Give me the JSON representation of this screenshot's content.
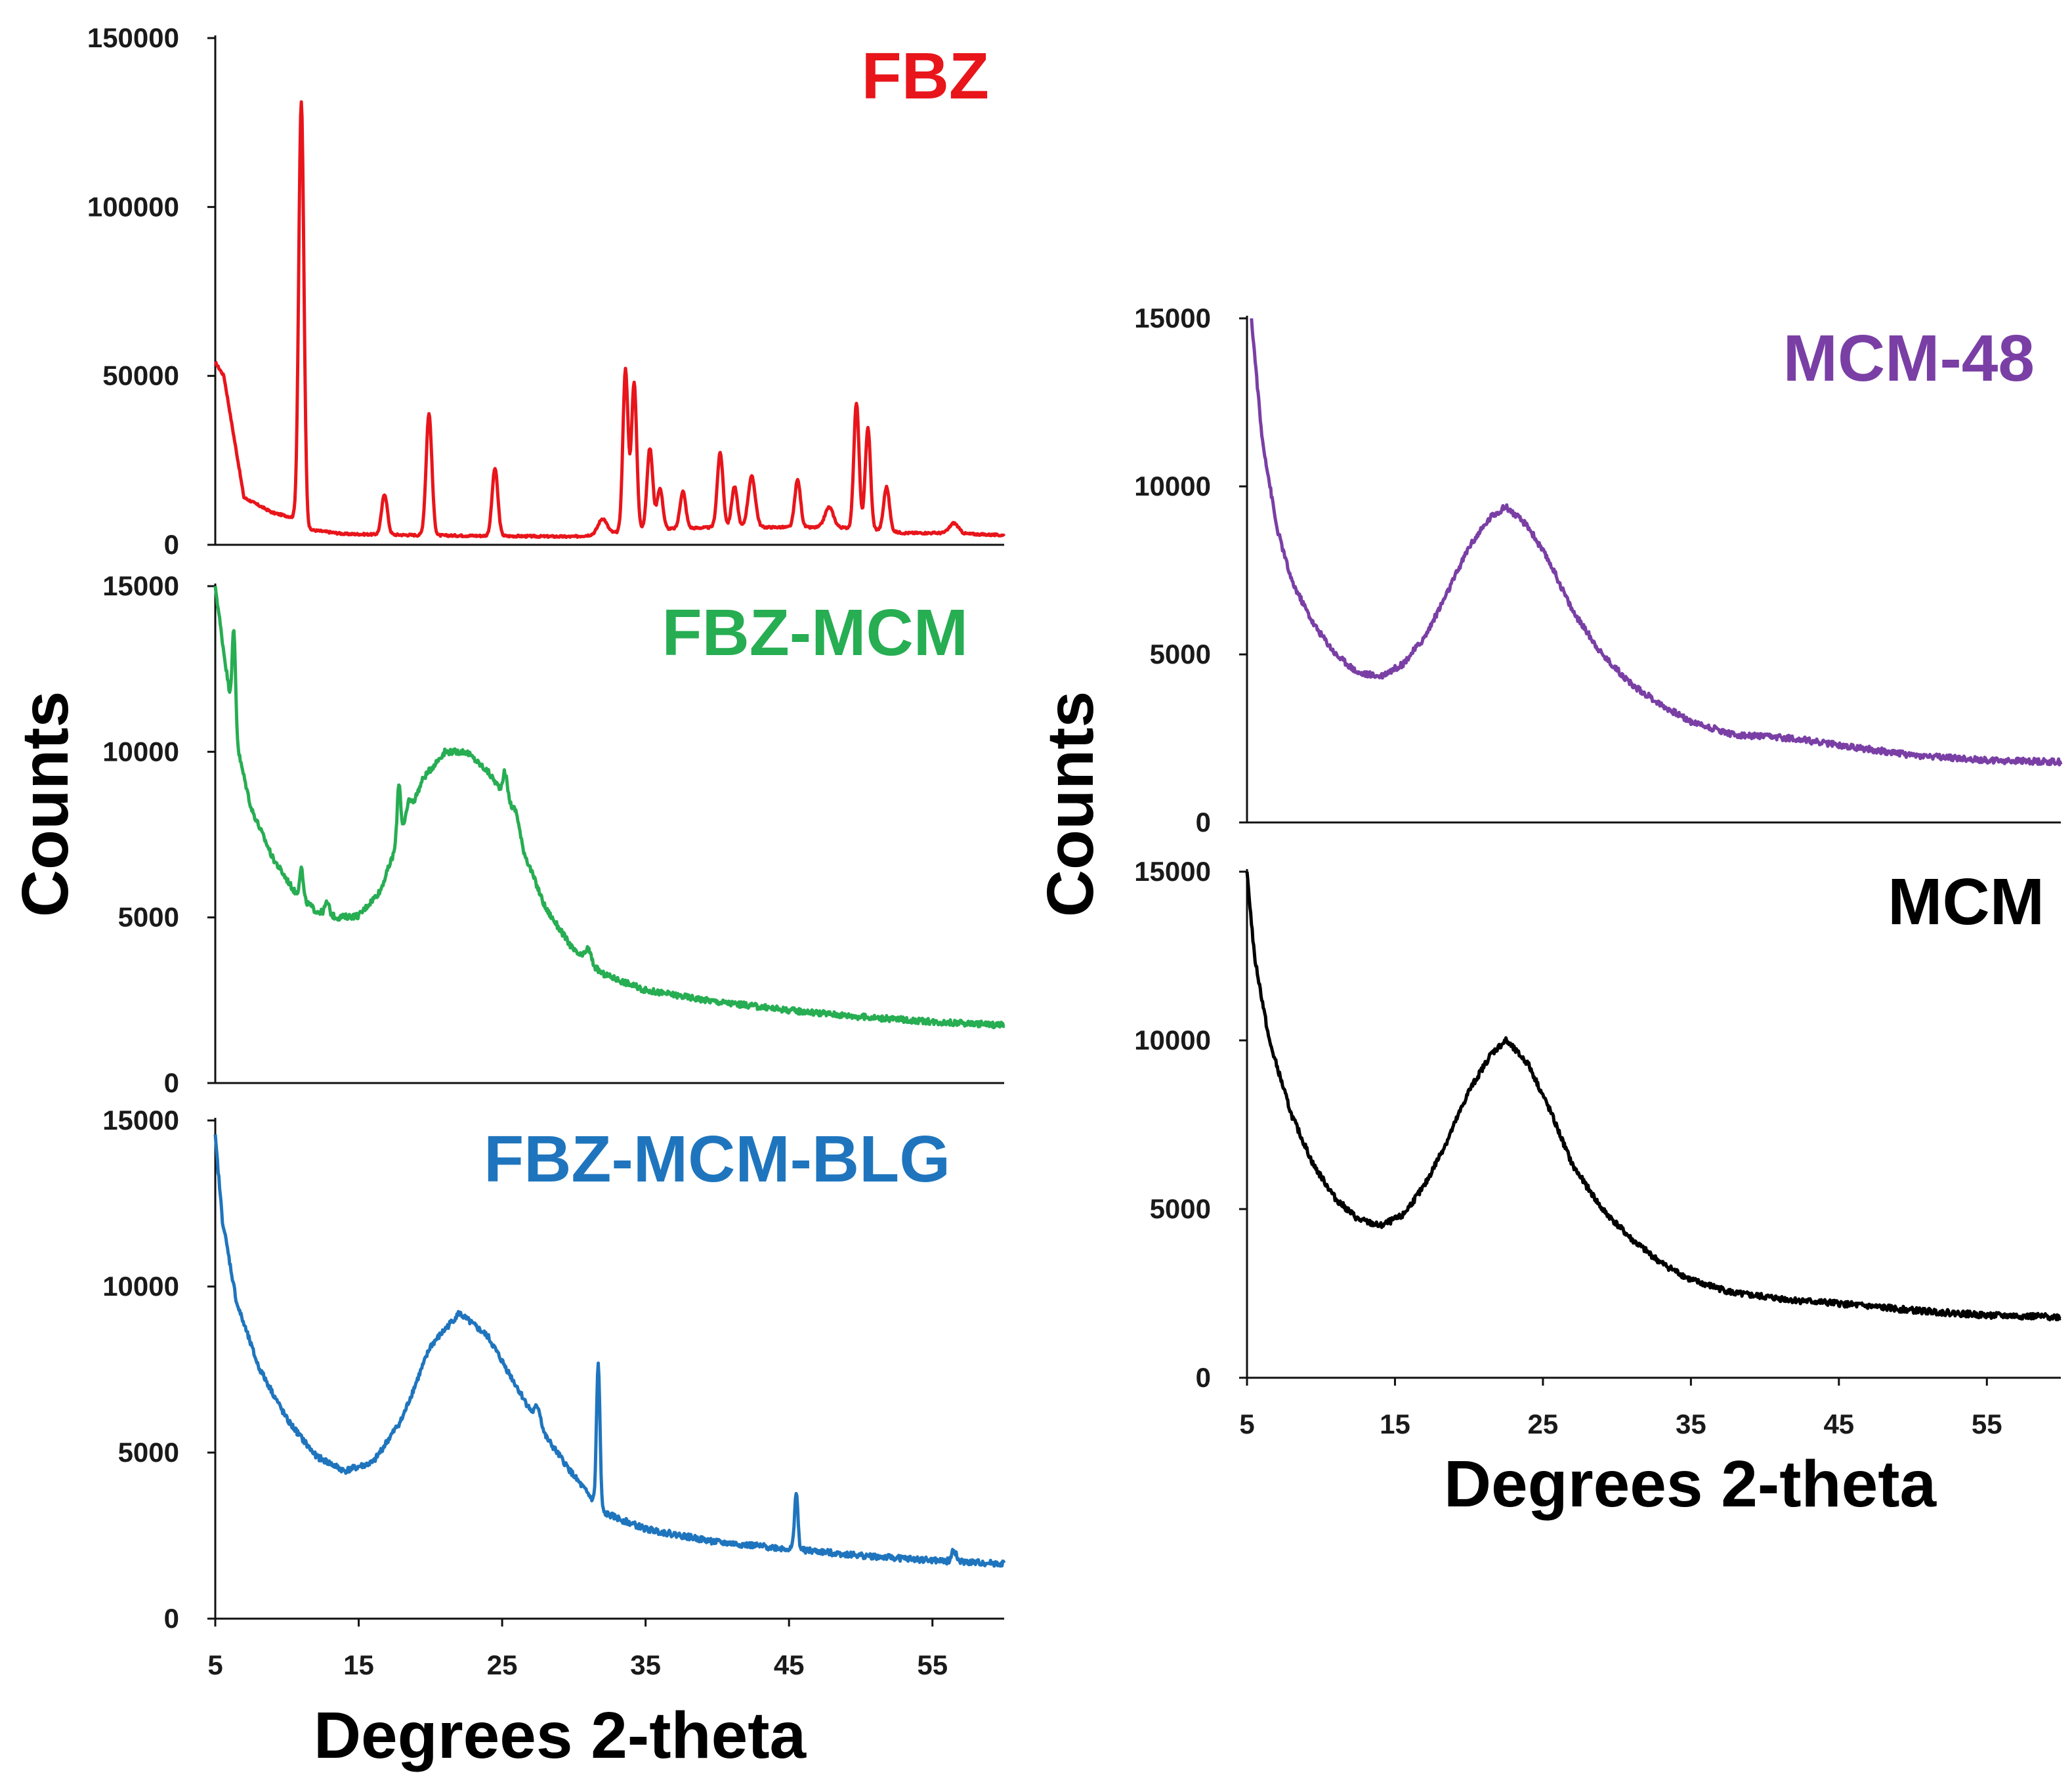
{
  "chart_data": [
    {
      "type": "line",
      "panel": "left-top",
      "series": [
        {
          "name": "FBZ",
          "color": "#e8151b"
        }
      ],
      "xlim": [
        5,
        60
      ],
      "ylim": [
        0,
        150000
      ],
      "yticks": [
        "0",
        "50000",
        "100000",
        "150000"
      ],
      "baseline": [
        [
          5,
          54000
        ],
        [
          5.6,
          50000
        ],
        [
          6.3,
          32000
        ],
        [
          7,
          14000
        ],
        [
          9,
          9500
        ],
        [
          10.5,
          8000
        ],
        [
          11.5,
          4500
        ],
        [
          14,
          3200
        ],
        [
          20,
          2800
        ],
        [
          25,
          2600
        ],
        [
          30,
          2400
        ],
        [
          35,
          4500
        ],
        [
          40,
          5200
        ],
        [
          45,
          5200
        ],
        [
          50,
          5000
        ],
        [
          53,
          3500
        ],
        [
          56,
          3500
        ],
        [
          60,
          2800
        ]
      ],
      "peaks": [
        [
          11,
          125000,
          0.18
        ],
        [
          16.8,
          12000,
          0.2
        ],
        [
          19.9,
          36000,
          0.2
        ],
        [
          24.5,
          20000,
          0.2
        ],
        [
          32,
          4500,
          0.3
        ],
        [
          33.6,
          48000,
          0.18
        ],
        [
          34.2,
          44000,
          0.18
        ],
        [
          35.3,
          24000,
          0.2
        ],
        [
          36,
          12000,
          0.2
        ],
        [
          37.6,
          11000,
          0.2
        ],
        [
          40.2,
          22000,
          0.2
        ],
        [
          41.2,
          12000,
          0.2
        ],
        [
          42.4,
          15000,
          0.25
        ],
        [
          45.6,
          14000,
          0.2
        ],
        [
          47.8,
          6000,
          0.3
        ],
        [
          49.7,
          37000,
          0.18
        ],
        [
          50.5,
          30000,
          0.18
        ],
        [
          51.8,
          13000,
          0.2
        ],
        [
          56.5,
          3000,
          0.3
        ]
      ]
    },
    {
      "type": "line",
      "panel": "left-middle",
      "series": [
        {
          "name": "FBZ-MCM",
          "color": "#27ad52"
        }
      ],
      "xlim": [
        5,
        60
      ],
      "ylim": [
        0,
        15000
      ],
      "yticks": [
        "0",
        "5000",
        "10000",
        "15000"
      ],
      "baseline": [
        [
          5,
          15000
        ],
        [
          5.6,
          13000
        ],
        [
          6.5,
          10200
        ],
        [
          7.5,
          8300
        ],
        [
          9,
          6800
        ],
        [
          10.5,
          5800
        ],
        [
          12,
          5200
        ],
        [
          13.5,
          5000
        ],
        [
          15,
          5050
        ],
        [
          16.5,
          5800
        ],
        [
          18,
          7600
        ],
        [
          19.5,
          9200
        ],
        [
          21,
          10000
        ],
        [
          22.5,
          10000
        ],
        [
          24,
          9400
        ],
        [
          25.5,
          8500
        ],
        [
          26.5,
          7000
        ],
        [
          28,
          5300
        ],
        [
          30,
          4000
        ],
        [
          32,
          3300
        ],
        [
          35,
          2800
        ],
        [
          40,
          2450
        ],
        [
          45,
          2200
        ],
        [
          50,
          2000
        ],
        [
          55,
          1850
        ],
        [
          60,
          1750
        ]
      ],
      "peaks": [
        [
          6.3,
          2800,
          0.12
        ],
        [
          11,
          900,
          0.12
        ],
        [
          12.8,
          350,
          0.15
        ],
        [
          17.8,
          1700,
          0.12
        ],
        [
          18.5,
          400,
          0.15
        ],
        [
          25.2,
          700,
          0.15
        ],
        [
          26,
          400,
          0.2
        ],
        [
          31,
          400,
          0.2
        ]
      ]
    },
    {
      "type": "line",
      "panel": "left-bottom",
      "series": [
        {
          "name": "FBZ-MCM-BLG",
          "color": "#1f75bd"
        }
      ],
      "xlim": [
        5,
        60
      ],
      "ylim": [
        0,
        15000
      ],
      "yticks": [
        "0",
        "5000",
        "10000",
        "15000"
      ],
      "xticks": [
        "5",
        "15",
        "25",
        "35",
        "45",
        "55"
      ],
      "xlabel": "Degrees 2-theta",
      "baseline": [
        [
          5,
          14500
        ],
        [
          5.5,
          12000
        ],
        [
          6.5,
          9500
        ],
        [
          8,
          7600
        ],
        [
          10,
          6000
        ],
        [
          12,
          4900
        ],
        [
          14,
          4450
        ],
        [
          16,
          4700
        ],
        [
          18,
          6000
        ],
        [
          20,
          8200
        ],
        [
          22,
          9200
        ],
        [
          24,
          8500
        ],
        [
          26,
          7000
        ],
        [
          28,
          5500
        ],
        [
          30,
          4300
        ],
        [
          32,
          3200
        ],
        [
          35,
          2700
        ],
        [
          40,
          2300
        ],
        [
          45,
          2100
        ],
        [
          50,
          1900
        ],
        [
          55,
          1750
        ],
        [
          60,
          1650
        ]
      ],
      "peaks": [
        [
          27.5,
          500,
          0.2
        ],
        [
          31.7,
          4300,
          0.12
        ],
        [
          45.5,
          1700,
          0.12
        ],
        [
          56.5,
          350,
          0.15
        ]
      ]
    },
    {
      "type": "line",
      "panel": "right-top",
      "series": [
        {
          "name": "MCM-48",
          "color": "#7a3fa5"
        }
      ],
      "xlim": [
        5,
        60
      ],
      "ylim": [
        0,
        15000
      ],
      "yticks": [
        "0",
        "5000",
        "10000",
        "15000"
      ],
      "baseline": [
        [
          5.3,
          15000
        ],
        [
          6,
          11500
        ],
        [
          7,
          8800
        ],
        [
          8,
          7200
        ],
        [
          9.5,
          5900
        ],
        [
          11,
          5000
        ],
        [
          12.5,
          4450
        ],
        [
          14,
          4350
        ],
        [
          15.5,
          4700
        ],
        [
          17,
          5500
        ],
        [
          18.5,
          6800
        ],
        [
          20,
          8200
        ],
        [
          21.5,
          9100
        ],
        [
          22.5,
          9400
        ],
        [
          24,
          8800
        ],
        [
          25.5,
          7700
        ],
        [
          27,
          6300
        ],
        [
          29,
          5000
        ],
        [
          31,
          4100
        ],
        [
          33,
          3500
        ],
        [
          35,
          3000
        ],
        [
          38,
          2600
        ],
        [
          42,
          2500
        ],
        [
          45,
          2300
        ],
        [
          50,
          2000
        ],
        [
          55,
          1850
        ],
        [
          60,
          1800
        ]
      ],
      "peaks": []
    },
    {
      "type": "line",
      "panel": "right-bottom",
      "series": [
        {
          "name": "MCM",
          "color": "#000000"
        }
      ],
      "xlim": [
        5,
        60
      ],
      "ylim": [
        0,
        15000
      ],
      "yticks": [
        "0",
        "5000",
        "10000",
        "15000"
      ],
      "xticks": [
        "5",
        "15",
        "25",
        "35",
        "45",
        "55"
      ],
      "xlabel": "Degrees 2-theta",
      "baseline": [
        [
          5,
          15000
        ],
        [
          5.5,
          12500
        ],
        [
          6.5,
          10000
        ],
        [
          8,
          7800
        ],
        [
          9.5,
          6300
        ],
        [
          11,
          5300
        ],
        [
          12.5,
          4700
        ],
        [
          14,
          4500
        ],
        [
          15.5,
          4800
        ],
        [
          17,
          5700
        ],
        [
          18.5,
          7000
        ],
        [
          20,
          8500
        ],
        [
          21.5,
          9600
        ],
        [
          22.5,
          10000
        ],
        [
          24,
          9300
        ],
        [
          25.5,
          7900
        ],
        [
          27,
          6300
        ],
        [
          29,
          5000
        ],
        [
          31,
          4100
        ],
        [
          33,
          3400
        ],
        [
          35,
          2900
        ],
        [
          38,
          2500
        ],
        [
          42,
          2300
        ],
        [
          45,
          2200
        ],
        [
          50,
          2000
        ],
        [
          55,
          1850
        ],
        [
          60,
          1800
        ]
      ],
      "peaks": []
    }
  ],
  "ylabel": "Counts"
}
